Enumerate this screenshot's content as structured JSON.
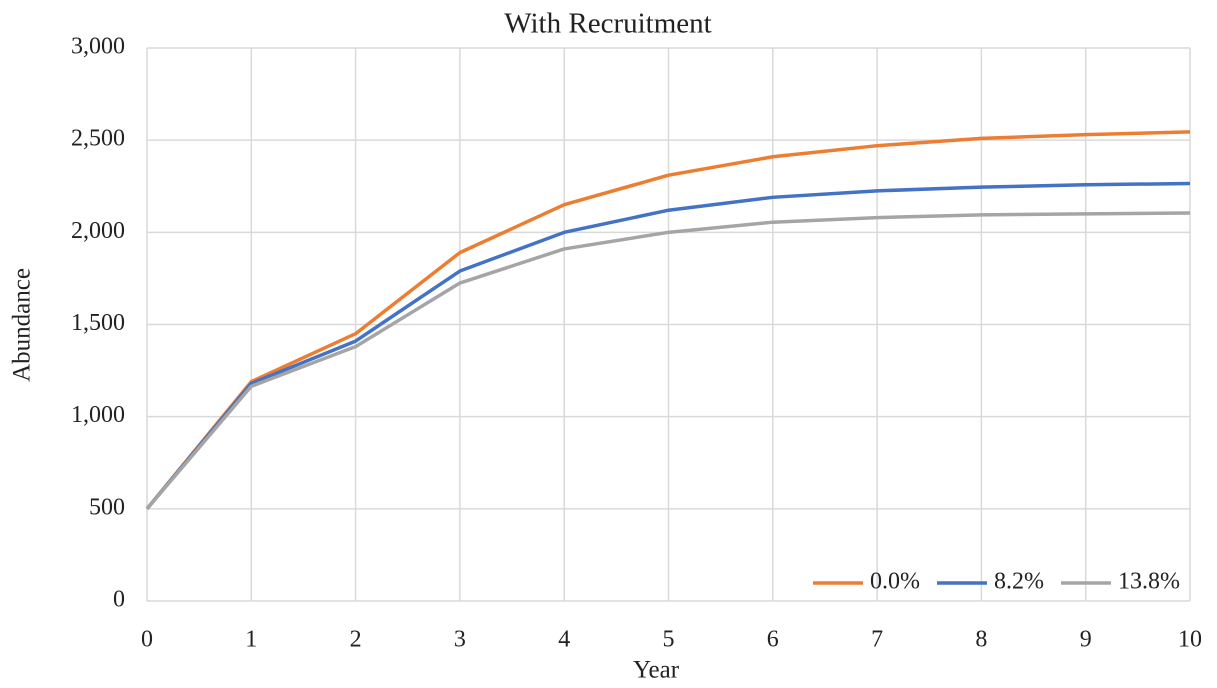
{
  "chart_data": {
    "type": "line",
    "title": "With Recruitment",
    "x_label": "Year",
    "y_label": "Abundance",
    "x": [
      0,
      1,
      2,
      3,
      4,
      5,
      6,
      7,
      8,
      9,
      10
    ],
    "xlim": [
      0,
      10
    ],
    "xticks": [
      0,
      1,
      2,
      3,
      4,
      5,
      6,
      7,
      8,
      9,
      10
    ],
    "ylim": [
      0,
      3000
    ],
    "yticks": [
      0,
      500,
      {
        "value": 1000,
        "label": "1,000"
      },
      {
        "value": 1500,
        "label": "1,500"
      },
      {
        "value": 2000,
        "label": "2,000"
      },
      {
        "value": 2500,
        "label": "2,500"
      },
      {
        "value": 3000,
        "label": "3,000"
      }
    ],
    "grid": true,
    "legend": "lower right",
    "series": [
      {
        "name": "0.0%",
        "color": "#ed7d31",
        "values": [
          500,
          1190,
          1450,
          1890,
          2150,
          2310,
          2410,
          2470,
          2510,
          2530,
          2545
        ]
      },
      {
        "name": "8.2%",
        "color": "#4472c4",
        "values": [
          500,
          1180,
          1410,
          1790,
          2000,
          2120,
          2190,
          2225,
          2245,
          2258,
          2265
        ]
      },
      {
        "name": "13.8%",
        "color": "#a5a5a5",
        "values": [
          500,
          1165,
          1380,
          1725,
          1910,
          2000,
          2055,
          2080,
          2095,
          2100,
          2105
        ]
      }
    ]
  }
}
